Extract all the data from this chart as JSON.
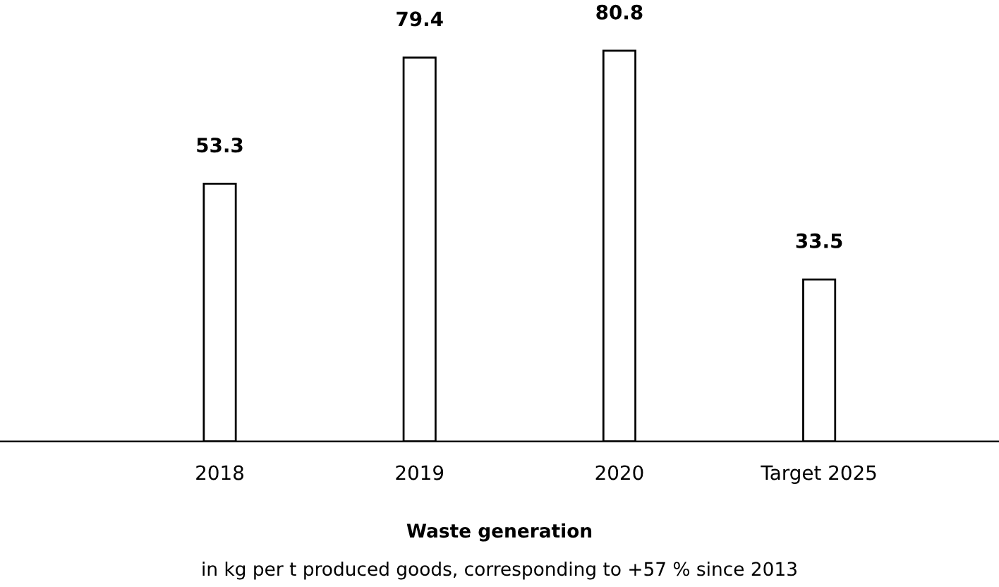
{
  "chart_data": {
    "type": "bar",
    "title": "Waste generation",
    "subtitle": "in kg per t produced goods, corresponding to +57 % since 2013",
    "categories": [
      "2018",
      "2019",
      "2020",
      "Target 2025"
    ],
    "values": [
      53.3,
      79.4,
      80.8,
      33.5
    ],
    "color": "#ffffff",
    "data_labels": true,
    "grid": false,
    "legend": false
  }
}
